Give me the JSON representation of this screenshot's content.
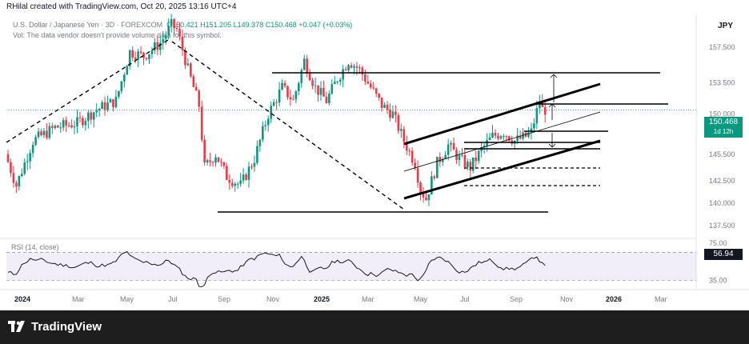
{
  "header": {
    "created_by": "RHilal created with TradingView.com, Oct 20, 2025 13:16 UTC+4",
    "symbol": "U.S. Dollar / Japanese Yen · 3D · FOREXCOM",
    "ohlc": "O150.421 H151.205 L149.378 C150.468 +0.047 (+0.03%)",
    "volume_note": "Vol: The data vendor doesn't provide volume data for this symbol.",
    "currency": "JPY"
  },
  "price_badge": {
    "value": "150.468",
    "timeframe": "1d 12h",
    "color": "#089981"
  },
  "rsi_badge": {
    "value": "56.94"
  },
  "rsi_label": "RSI (14, close)",
  "footer": {
    "brand": "TradingView"
  },
  "chart_data": {
    "type": "candlestick",
    "x_ticks": [
      "2024",
      "Mar",
      "May",
      "Jul",
      "Sep",
      "Nov",
      "2025",
      "Mar",
      "May",
      "Jul",
      "Sep",
      "Nov",
      "2026",
      "Mar"
    ],
    "y_ticks": [
      "157.500",
      "153.500",
      "150.000",
      "145.500",
      "142.500",
      "140.000",
      "137.500"
    ],
    "ylim": [
      136.5,
      160.3
    ],
    "last_price": 150.468,
    "rsi": {
      "last": 56.94,
      "ticks": [
        "75.00",
        "35.00"
      ],
      "band": [
        35,
        65
      ],
      "ylim": [
        25,
        80
      ]
    },
    "colors": {
      "up": "#089981",
      "down": "#f23645",
      "rsi": "#131722",
      "band": "#7e57c2"
    }
  }
}
